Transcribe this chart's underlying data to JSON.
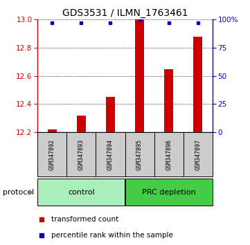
{
  "title": "GDS3531 / ILMN_1763461",
  "samples": [
    "GSM347892",
    "GSM347893",
    "GSM347894",
    "GSM347895",
    "GSM347896",
    "GSM347897"
  ],
  "red_values": [
    12.22,
    12.32,
    12.45,
    13.0,
    12.65,
    12.88
  ],
  "blue_values": [
    97,
    97,
    97,
    100,
    97,
    97
  ],
  "y_min": 12.2,
  "y_max": 13.0,
  "y_ticks": [
    12.2,
    12.4,
    12.6,
    12.8,
    13.0
  ],
  "y2_ticks": [
    0,
    25,
    50,
    75,
    100
  ],
  "bar_color": "#CC0000",
  "dot_color": "#0000BB",
  "bar_width": 0.3,
  "axis_color": "#CC0000",
  "axis2_color": "#0000BB",
  "control_color": "#AAEEBB",
  "prc_color": "#44CC44",
  "sample_box_color": "#CCCCCC",
  "legend_red": "transformed count",
  "legend_blue": "percentile rank within the sample",
  "group_boundaries": [
    [
      -0.5,
      2.5,
      "control"
    ],
    [
      2.5,
      5.5,
      "PRC depletion"
    ]
  ],
  "group_colors": [
    "#AAEEBB",
    "#44CC44"
  ]
}
